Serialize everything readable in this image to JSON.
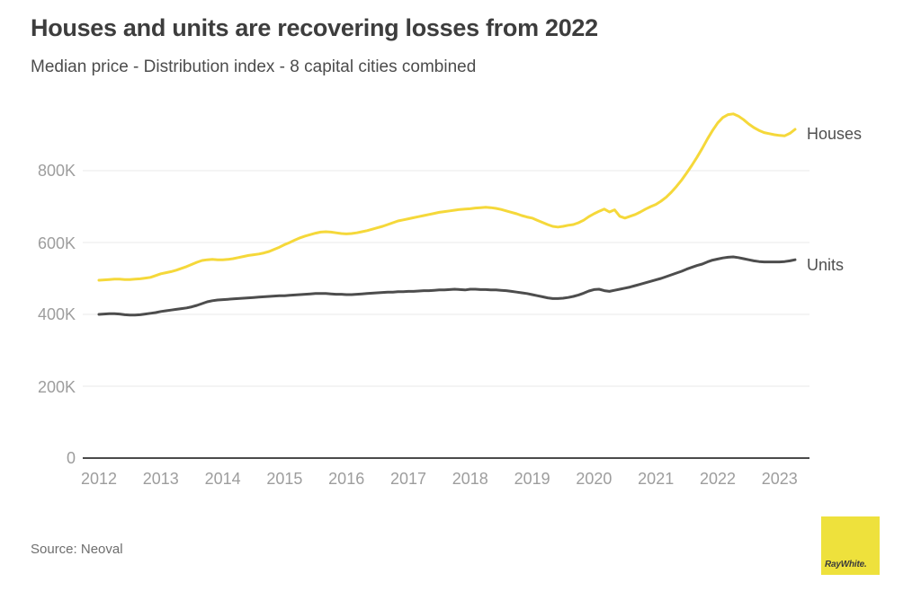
{
  "header": {
    "title": "Houses and units are recovering losses from 2022",
    "subtitle": "Median price - Distribution index - 8 capital cities combined"
  },
  "footer": {
    "source": "Source: Neoval",
    "logo_text": "RayWhite."
  },
  "colors": {
    "houses_line": "#f5d83a",
    "units_line": "#4d4d4d",
    "logo_yellow": "#eee13c",
    "grid": "#e8e8e8",
    "axis": "#4a4a4a",
    "tick_text": "#9d9d9d"
  },
  "chart_data": {
    "type": "line",
    "title": "Houses and units are recovering losses from 2022",
    "subtitle": "Median price - Distribution index - 8 capital cities combined",
    "xlabel": "",
    "ylabel": "",
    "x_unit": "year (monthly points)",
    "y_unit": "AUD thousands",
    "x_start_year": 2012,
    "x_points_per_year": 12,
    "ylim": [
      0,
      1000
    ],
    "y_ticks": [
      0,
      200,
      400,
      600,
      800
    ],
    "y_tick_labels": [
      "0",
      "200K",
      "400K",
      "600K",
      "800K"
    ],
    "x_tick_labels": [
      "2012",
      "2013",
      "2014",
      "2015",
      "2016",
      "2017",
      "2018",
      "2019",
      "2020",
      "2021",
      "2022",
      "2023"
    ],
    "grid": "horizontal",
    "legend_position": "line-end-labels",
    "series": [
      {
        "name": "Houses",
        "color": "#f5d83a",
        "values": [
          495,
          496,
          497,
          498,
          498,
          497,
          497,
          498,
          499,
          501,
          503,
          508,
          513,
          516,
          519,
          523,
          528,
          533,
          539,
          545,
          550,
          552,
          553,
          552,
          552,
          553,
          555,
          558,
          561,
          564,
          566,
          568,
          571,
          575,
          581,
          587,
          594,
          600,
          607,
          613,
          618,
          622,
          626,
          629,
          630,
          629,
          627,
          625,
          624,
          625,
          627,
          630,
          633,
          637,
          641,
          645,
          650,
          655,
          660,
          663,
          666,
          669,
          672,
          675,
          678,
          681,
          684,
          686,
          688,
          690,
          692,
          693,
          694,
          696,
          697,
          698,
          697,
          695,
          692,
          688,
          684,
          680,
          675,
          671,
          668,
          662,
          656,
          650,
          645,
          643,
          645,
          648,
          650,
          655,
          662,
          672,
          680,
          687,
          693,
          685,
          691,
          673,
          668,
          673,
          678,
          685,
          693,
          700,
          706,
          715,
          726,
          740,
          756,
          774,
          794,
          815,
          838,
          862,
          888,
          912,
          933,
          948,
          956,
          958,
          952,
          942,
          930,
          920,
          912,
          906,
          903,
          900,
          898,
          897,
          904,
          915
        ]
      },
      {
        "name": "Units",
        "color": "#4d4d4d",
        "values": [
          400,
          401,
          402,
          402,
          401,
          399,
          398,
          398,
          399,
          401,
          403,
          405,
          408,
          410,
          412,
          414,
          416,
          418,
          421,
          425,
          430,
          435,
          438,
          440,
          441,
          442,
          443,
          444,
          445,
          446,
          447,
          448,
          449,
          450,
          451,
          452,
          452,
          453,
          454,
          455,
          456,
          457,
          458,
          458,
          458,
          457,
          456,
          456,
          455,
          455,
          456,
          457,
          458,
          459,
          460,
          461,
          462,
          462,
          463,
          463,
          464,
          464,
          465,
          466,
          466,
          467,
          468,
          468,
          469,
          470,
          469,
          468,
          470,
          470,
          469,
          469,
          468,
          468,
          467,
          466,
          464,
          462,
          460,
          458,
          455,
          452,
          449,
          446,
          444,
          444,
          445,
          447,
          450,
          454,
          459,
          465,
          469,
          470,
          466,
          464,
          467,
          470,
          473,
          476,
          480,
          484,
          488,
          492,
          496,
          500,
          505,
          510,
          515,
          520,
          526,
          531,
          536,
          540,
          546,
          551,
          554,
          557,
          559,
          560,
          558,
          555,
          552,
          549,
          547,
          546,
          546,
          546,
          546,
          547,
          549,
          552
        ]
      }
    ]
  }
}
